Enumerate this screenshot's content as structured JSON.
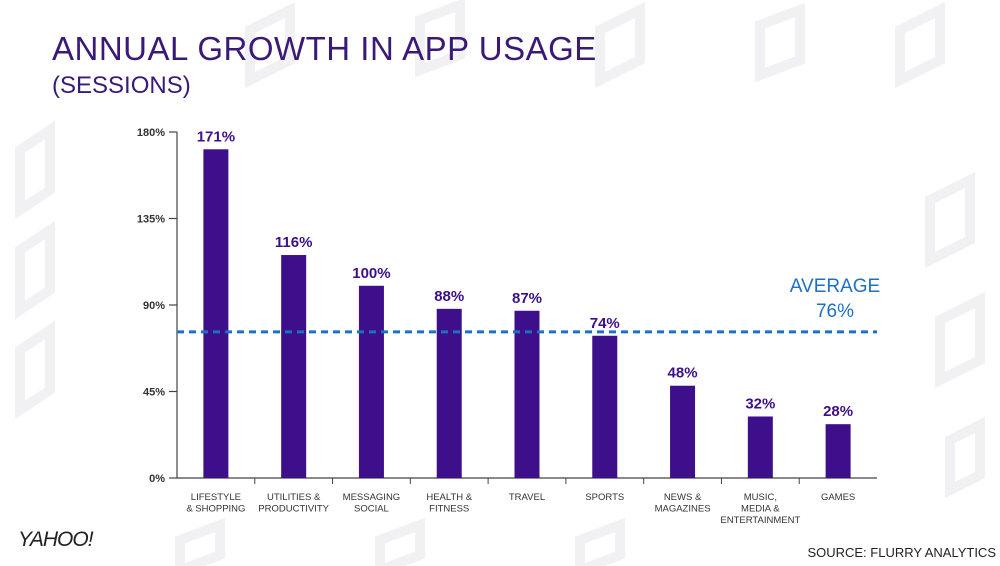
{
  "title": "ANNUAL GROWTH IN APP USAGE",
  "subtitle": "(SESSIONS)",
  "logo": "YAHOO!",
  "source": "SOURCE: FLURRY ANALYTICS",
  "colors": {
    "bar": "#3d0f8a",
    "title": "#3a1a78",
    "average": "#1f6fc7",
    "axis": "#444444"
  },
  "chart_data": {
    "type": "bar",
    "title": "ANNUAL GROWTH IN APP USAGE",
    "subtitle": "(SESSIONS)",
    "xlabel": "",
    "ylabel": "",
    "ylim": [
      0,
      180
    ],
    "yticks": [
      {
        "value": 0,
        "label": "0%"
      },
      {
        "value": 45,
        "label": "45%"
      },
      {
        "value": 90,
        "label": "90%"
      },
      {
        "value": 135,
        "label": "135%"
      },
      {
        "value": 180,
        "label": "180%"
      }
    ],
    "categories": [
      [
        "LIFESTYLE",
        "& SHOPPING"
      ],
      [
        "UTILITIES &",
        "PRODUCTIVITY"
      ],
      [
        "MESSAGING",
        "SOCIAL"
      ],
      [
        "HEALTH &",
        "FITNESS"
      ],
      [
        "TRAVEL"
      ],
      [
        "SPORTS"
      ],
      [
        "NEWS &",
        "MAGAZINES"
      ],
      [
        "MUSIC,",
        "MEDIA &",
        "ENTERTAINMENT"
      ],
      [
        "GAMES"
      ]
    ],
    "values": [
      171,
      116,
      100,
      88,
      87,
      74,
      48,
      32,
      28
    ],
    "value_labels": [
      "171%",
      "116%",
      "100%",
      "88%",
      "87%",
      "74%",
      "48%",
      "32%",
      "28%"
    ],
    "average": {
      "value": 76,
      "label_line1": "AVERAGE",
      "label_line2": "76%"
    },
    "grid": false,
    "legend": "none"
  }
}
